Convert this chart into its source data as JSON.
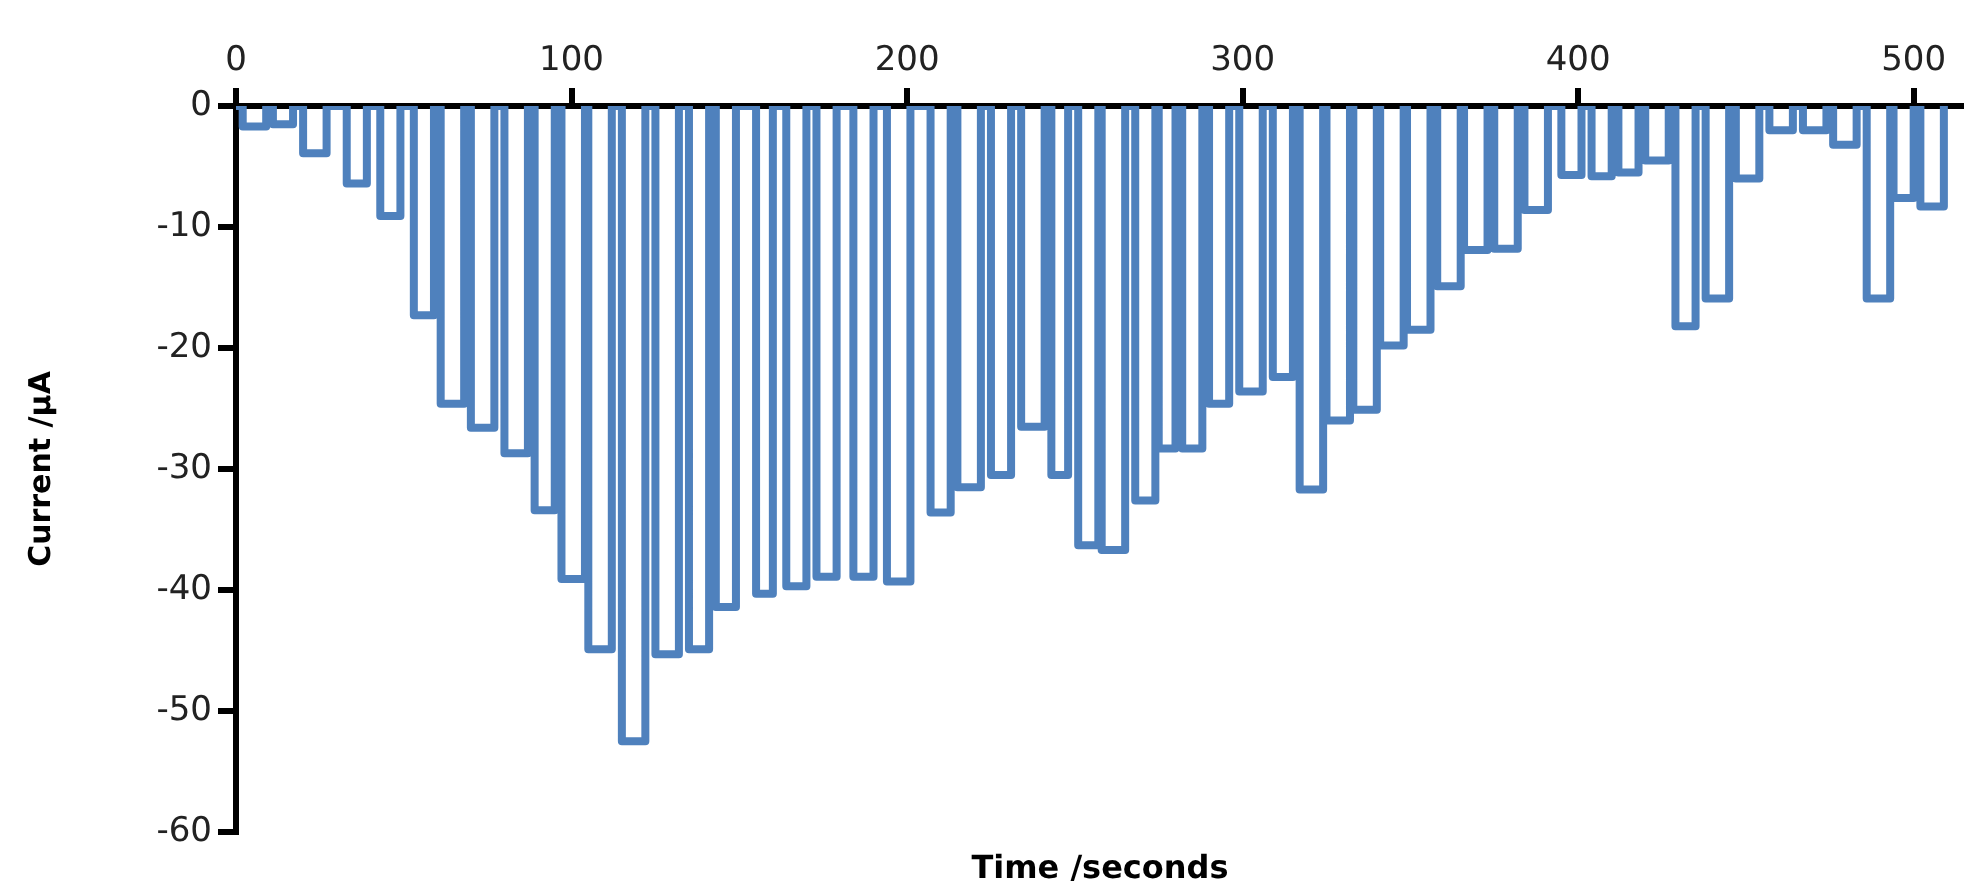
{
  "chart_data": {
    "type": "line",
    "xlabel": "Time /seconds",
    "ylabel": "Current /µA",
    "marker": "none",
    "xlim": [
      0,
      515
    ],
    "xticks": [
      0,
      100,
      200,
      300,
      400,
      500
    ],
    "ylim": [
      -60,
      0
    ],
    "yticks": [
      -60,
      -50,
      -40,
      -30,
      -20,
      -10,
      0
    ],
    "series": [
      {
        "color": "#4f81bd",
        "x": [
          0,
          2,
          2,
          9,
          9,
          11,
          11,
          17,
          17,
          20,
          20,
          27,
          27,
          33,
          33,
          39,
          39,
          43,
          43,
          49,
          49,
          53,
          53,
          59,
          59,
          61,
          61,
          68,
          68,
          70,
          70,
          77,
          77,
          80,
          80,
          87,
          87,
          89,
          89,
          95,
          95,
          97,
          97,
          104,
          104,
          105,
          105,
          112,
          112,
          115,
          115,
          122,
          122,
          125,
          125,
          132,
          132,
          135,
          135,
          141,
          141,
          143,
          143,
          149,
          149,
          155,
          155,
          160,
          160,
          164,
          164,
          170,
          170,
          173,
          173,
          179,
          179,
          184,
          184,
          190,
          190,
          194,
          194,
          201,
          201,
          207,
          207,
          213,
          213,
          215,
          215,
          222,
          222,
          225,
          225,
          231,
          231,
          234,
          234,
          241,
          241,
          243,
          243,
          248,
          248,
          251,
          251,
          257,
          257,
          258,
          258,
          265,
          265,
          268,
          268,
          274,
          274,
          275,
          275,
          280,
          280,
          282,
          282,
          288,
          288,
          290,
          290,
          296,
          296,
          299,
          299,
          306,
          306,
          309,
          309,
          315,
          315,
          317,
          317,
          324,
          324,
          325,
          325,
          332,
          332,
          333,
          333,
          340,
          340,
          341,
          341,
          348,
          348,
          349,
          349,
          356,
          356,
          358,
          358,
          365,
          365,
          366,
          366,
          373,
          373,
          375,
          375,
          382,
          382,
          384,
          384,
          391,
          391,
          395,
          395,
          401,
          401,
          404,
          404,
          410,
          410,
          412,
          412,
          418,
          418,
          420,
          420,
          427,
          427,
          429,
          429,
          435,
          435,
          438,
          438,
          445,
          445,
          447,
          447,
          454,
          454,
          457,
          457,
          464,
          464,
          467,
          467,
          474,
          474,
          476,
          476,
          483,
          483,
          486,
          486,
          493,
          493,
          494,
          494,
          500,
          500,
          502,
          502,
          509,
          509
        ],
        "values": [
          0,
          0,
          -1.7,
          -1.7,
          0,
          0,
          -1.5,
          -1.5,
          0,
          0,
          -3.9,
          -3.9,
          0,
          0,
          -6.4,
          -6.4,
          0,
          0,
          -9.1,
          -9.1,
          0,
          0,
          -17.3,
          -17.3,
          0,
          0,
          -24.6,
          -24.6,
          0,
          0,
          -26.6,
          -26.6,
          0,
          0,
          -28.7,
          -28.7,
          0,
          0,
          -33.4,
          -33.4,
          0,
          0,
          -39.1,
          -39.1,
          0,
          0,
          -44.9,
          -44.9,
          0,
          0,
          -52.5,
          -52.5,
          0,
          0,
          -45.3,
          -45.3,
          0,
          0,
          -44.9,
          -44.9,
          0,
          0,
          -41.4,
          -41.4,
          0,
          0,
          -40.3,
          -40.3,
          0,
          0,
          -39.7,
          -39.7,
          0,
          0,
          -38.9,
          -38.9,
          0,
          0,
          -38.9,
          -38.9,
          0,
          0,
          -39.3,
          -39.3,
          0,
          0,
          -33.6,
          -33.6,
          0,
          0,
          -31.5,
          -31.5,
          0,
          0,
          -30.5,
          -30.5,
          0,
          0,
          -26.5,
          -26.5,
          0,
          0,
          -30.5,
          -30.5,
          0,
          0,
          -36.3,
          -36.3,
          0,
          0,
          -36.7,
          -36.7,
          0,
          0,
          -32.6,
          -32.6,
          0,
          0,
          -28.3,
          -28.3,
          0,
          0,
          -28.3,
          -28.3,
          0,
          0,
          -24.6,
          -24.6,
          0,
          0,
          -23.6,
          -23.6,
          0,
          0,
          -22.4,
          -22.4,
          0,
          0,
          -31.7,
          -31.7,
          0,
          0,
          -26,
          -26,
          0,
          0,
          -25.1,
          -25.1,
          0,
          0,
          -19.8,
          -19.8,
          0,
          0,
          -18.5,
          -18.5,
          0,
          0,
          -14.9,
          -14.9,
          0,
          0,
          -11.9,
          -11.9,
          0,
          0,
          -11.8,
          -11.8,
          0,
          0,
          -8.6,
          -8.6,
          0,
          0,
          -5.7,
          -5.7,
          0,
          0,
          -5.8,
          -5.8,
          0,
          0,
          -5.5,
          -5.5,
          0,
          0,
          -4.5,
          -4.5,
          0,
          0,
          -18.2,
          -18.2,
          0,
          0,
          -15.9,
          -15.9,
          0,
          0,
          -6,
          -6,
          0,
          0,
          -2,
          -2,
          0,
          0,
          -2,
          -2,
          0,
          0,
          -3.2,
          -3.2,
          0,
          0,
          -15.9,
          -15.9,
          0,
          0,
          -7.6,
          -7.6,
          0,
          0,
          -8.3,
          -8.3,
          0
        ]
      }
    ]
  }
}
